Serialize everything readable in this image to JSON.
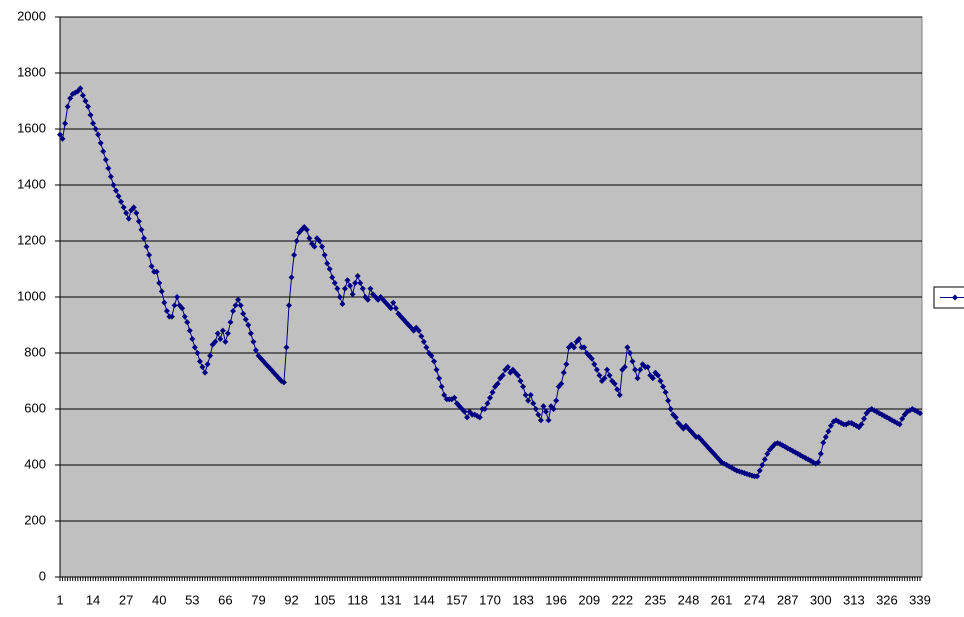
{
  "chart_data": {
    "type": "line",
    "categories": [
      "1",
      null,
      null,
      null,
      null,
      null,
      null,
      null,
      null,
      null,
      null,
      null,
      null,
      "14",
      null,
      null,
      null,
      null,
      null,
      null,
      null,
      null,
      null,
      null,
      null,
      null,
      "27",
      null,
      null,
      null,
      null,
      null,
      null,
      null,
      null,
      null,
      null,
      null,
      null,
      "40",
      null,
      null,
      null,
      null,
      null,
      null,
      null,
      null,
      null,
      null,
      null,
      null,
      "53",
      null,
      null,
      null,
      null,
      null,
      null,
      null,
      null,
      null,
      null,
      null,
      null,
      "66",
      null,
      null,
      null,
      null,
      null,
      null,
      null,
      null,
      null,
      null,
      null,
      null,
      "79",
      null,
      null,
      null,
      null,
      null,
      null,
      null,
      null,
      null,
      null,
      null,
      null,
      "92",
      null,
      null,
      null,
      null,
      null,
      null,
      null,
      null,
      null,
      null,
      null,
      null,
      "105",
      null,
      null,
      null,
      null,
      null,
      null,
      null,
      null,
      null,
      null,
      null,
      null,
      "118",
      null,
      null,
      null,
      null,
      null,
      null,
      null,
      null,
      null,
      null,
      null,
      null,
      "131",
      null,
      null,
      null,
      null,
      null,
      null,
      null,
      null,
      null,
      null,
      null,
      null,
      "144",
      null,
      null,
      null,
      null,
      null,
      null,
      null,
      null,
      null,
      null,
      null,
      null,
      "157",
      null,
      null,
      null,
      null,
      null,
      null,
      null,
      null,
      null,
      null,
      null,
      null,
      "170",
      null,
      null,
      null,
      null,
      null,
      null,
      null,
      null,
      null,
      null,
      null,
      null,
      "183",
      null,
      null,
      null,
      null,
      null,
      null,
      null,
      null,
      null,
      null,
      null,
      null,
      "196",
      null,
      null,
      null,
      null,
      null,
      null,
      null,
      null,
      null,
      null,
      null,
      null,
      "209",
      null,
      null,
      null,
      null,
      null,
      null,
      null,
      null,
      null,
      null,
      null,
      null,
      "222",
      null,
      null,
      null,
      null,
      null,
      null,
      null,
      null,
      null,
      null,
      null,
      null,
      "235",
      null,
      null,
      null,
      null,
      null,
      null,
      null,
      null,
      null,
      null,
      null,
      null,
      "248",
      null,
      null,
      null,
      null,
      null,
      null,
      null,
      null,
      null,
      null,
      null,
      null,
      "261",
      null,
      null,
      null,
      null,
      null,
      null,
      null,
      null,
      null,
      null,
      null,
      null,
      "274",
      null,
      null,
      null,
      null,
      null,
      null,
      null,
      null,
      null,
      null,
      null,
      null,
      "287",
      null,
      null,
      null,
      null,
      null,
      null,
      null,
      null,
      null,
      null,
      null,
      null,
      "300",
      null,
      null,
      null,
      null,
      null,
      null,
      null,
      null,
      null,
      null,
      null,
      null,
      "313",
      null,
      null,
      null,
      null,
      null,
      null,
      null,
      null,
      null,
      null,
      null,
      null,
      "326",
      null,
      null,
      null,
      null,
      null,
      null,
      null,
      null,
      null,
      null,
      null,
      null,
      "339"
    ],
    "series": [
      {
        "color": "#000080",
        "values": [
          1580,
          1565,
          1620,
          1680,
          1710,
          1725,
          1730,
          1735,
          1745,
          1720,
          1700,
          1680,
          1650,
          1620,
          1600,
          1580,
          1550,
          1520,
          1490,
          1460,
          1430,
          1400,
          1380,
          1360,
          1340,
          1320,
          1300,
          1280,
          1310,
          1320,
          1300,
          1270,
          1240,
          1210,
          1180,
          1150,
          1110,
          1090,
          1090,
          1050,
          1020,
          980,
          950,
          930,
          930,
          970,
          1000,
          970,
          960,
          930,
          910,
          880,
          850,
          820,
          800,
          770,
          750,
          730,
          760,
          790,
          830,
          840,
          870,
          850,
          880,
          840,
          870,
          910,
          950,
          970,
          990,
          970,
          940,
          920,
          900,
          870,
          840,
          810,
          790,
          780,
          770,
          760,
          750,
          740,
          730,
          720,
          710,
          700,
          695,
          820,
          970,
          1070,
          1150,
          1200,
          1230,
          1240,
          1250,
          1240,
          1210,
          1190,
          1180,
          1210,
          1200,
          1180,
          1150,
          1120,
          1100,
          1070,
          1050,
          1030,
          1000,
          975,
          1030,
          1060,
          1040,
          1010,
          1050,
          1075,
          1050,
          1030,
          1000,
          990,
          1030,
          1010,
          1000,
          990,
          1000,
          990,
          980,
          970,
          960,
          980,
          960,
          940,
          930,
          920,
          910,
          900,
          890,
          880,
          890,
          880,
          860,
          840,
          820,
          800,
          790,
          770,
          740,
          710,
          680,
          650,
          635,
          635,
          635,
          640,
          620,
          610,
          600,
          590,
          570,
          590,
          580,
          580,
          575,
          570,
          600,
          600,
          620,
          640,
          660,
          680,
          690,
          710,
          720,
          740,
          750,
          730,
          740,
          730,
          720,
          700,
          680,
          650,
          630,
          650,
          620,
          600,
          580,
          560,
          610,
          590,
          560,
          610,
          600,
          630,
          680,
          690,
          730,
          760,
          820,
          830,
          820,
          840,
          850,
          820,
          820,
          800,
          790,
          780,
          760,
          740,
          720,
          700,
          710,
          740,
          720,
          700,
          690,
          670,
          650,
          740,
          750,
          820,
          800,
          770,
          740,
          710,
          740,
          760,
          750,
          750,
          720,
          710,
          730,
          720,
          700,
          680,
          660,
          630,
          600,
          580,
          570,
          550,
          540,
          530,
          540,
          530,
          520,
          510,
          500,
          500,
          490,
          480,
          470,
          460,
          450,
          440,
          430,
          420,
          410,
          405,
          400,
          395,
          390,
          385,
          380,
          377,
          374,
          371,
          368,
          365,
          362,
          360,
          360,
          380,
          400,
          420,
          440,
          455,
          465,
          475,
          478,
          475,
          470,
          465,
          460,
          455,
          450,
          445,
          440,
          435,
          430,
          425,
          420,
          415,
          410,
          405,
          410,
          440,
          480,
          500,
          520,
          540,
          555,
          560,
          555,
          550,
          545,
          545,
          550,
          550,
          545,
          540,
          535,
          545,
          565,
          585,
          595,
          600,
          595,
          590,
          585,
          580,
          575,
          570,
          565,
          560,
          555,
          550,
          545,
          565,
          580,
          590,
          595,
          600,
          595,
          590,
          585
        ]
      }
    ],
    "ylim": [
      0,
      2000
    ],
    "yticks": [
      0,
      200,
      400,
      600,
      800,
      1000,
      1200,
      1400,
      1600,
      1800,
      2000
    ],
    "grid": true,
    "plot_background": "#c0c0c0",
    "legend": "right"
  }
}
